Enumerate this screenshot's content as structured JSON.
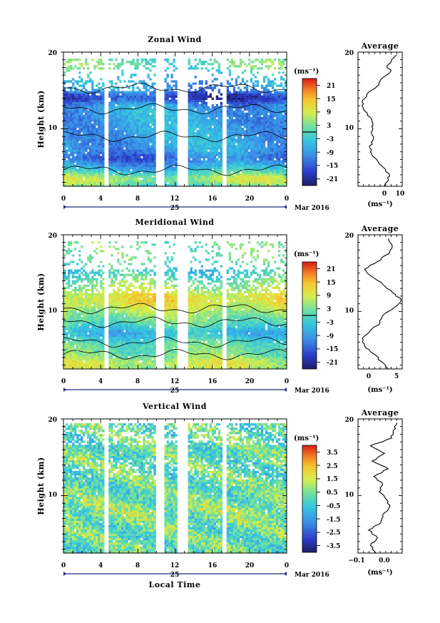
{
  "chart_data": [
    {
      "type": "heatmap",
      "title": "Zonal Wind",
      "ylabel": "Height (km)",
      "xlim": [
        0,
        24
      ],
      "ylim": [
        2.5,
        20
      ],
      "xticks": [
        "0",
        "4",
        "8",
        "12",
        "16",
        "20",
        "0"
      ],
      "yticks": [
        "10",
        "20"
      ],
      "date_marker": "25",
      "date_label": "Mar 2016",
      "colorbar": {
        "unit": "(ms⁻¹)",
        "ticks": [
          "21",
          "15",
          "9",
          "3",
          "-3",
          "-9",
          "-15",
          "-21"
        ],
        "range": [
          -24,
          24
        ]
      },
      "profile": {
        "title": "Average",
        "xlabel": "(ms⁻¹)",
        "xticks": [
          "0",
          "10"
        ],
        "xlim": [
          -8,
          12
        ],
        "points": [
          [
            4,
            2.5
          ],
          [
            5.8,
            3.3
          ],
          [
            6.2,
            4
          ],
          [
            4.2,
            4.8
          ],
          [
            1.5,
            5.5
          ],
          [
            -1.6,
            6.5
          ],
          [
            -2.6,
            7.5
          ],
          [
            -1.2,
            8.5
          ],
          [
            -2,
            9.5
          ],
          [
            -1.2,
            10.5
          ],
          [
            -2.5,
            11.5
          ],
          [
            -5.5,
            12.5
          ],
          [
            -6.2,
            13.5
          ],
          [
            -4,
            14.5
          ],
          [
            0.5,
            15.5
          ],
          [
            2.5,
            16.5
          ],
          [
            6.8,
            17.5
          ],
          [
            5.2,
            18.2
          ],
          [
            7.2,
            19
          ],
          [
            9.5,
            19.6
          ]
        ]
      },
      "style": {
        "base": -8,
        "mode": "zonal"
      }
    },
    {
      "type": "heatmap",
      "title": "Meridional Wind",
      "ylabel": "Height (km)",
      "xlim": [
        0,
        24
      ],
      "ylim": [
        2.5,
        20
      ],
      "xticks": [
        "0",
        "4",
        "8",
        "12",
        "16",
        "20",
        "0"
      ],
      "yticks": [
        "10",
        "20"
      ],
      "date_marker": "25",
      "date_label": "Mar 2016",
      "colorbar": {
        "unit": "(ms⁻¹)",
        "ticks": [
          "21",
          "15",
          "9",
          "3",
          "-3",
          "-9",
          "-15",
          "-21"
        ],
        "range": [
          -24,
          24
        ]
      },
      "profile": {
        "title": "Average",
        "xlabel": "(ms⁻¹)",
        "xticks": [
          "0",
          "5"
        ],
        "xlim": [
          -2,
          6
        ],
        "points": [
          [
            3.5,
            2.5
          ],
          [
            2.2,
            3.5
          ],
          [
            0.8,
            4.5
          ],
          [
            -0.8,
            5.5
          ],
          [
            -1.2,
            6.5
          ],
          [
            0.2,
            7.5
          ],
          [
            2,
            8.5
          ],
          [
            2.5,
            9.5
          ],
          [
            4.5,
            10.5
          ],
          [
            5.8,
            11.5
          ],
          [
            4.2,
            12.5
          ],
          [
            2.5,
            13.5
          ],
          [
            0.6,
            14.5
          ],
          [
            -0.8,
            15.5
          ],
          [
            1.5,
            16.5
          ],
          [
            3.5,
            17.5
          ],
          [
            4.2,
            18.5
          ],
          [
            3.5,
            19.5
          ]
        ]
      },
      "style": {
        "base": 2,
        "mode": "meridional"
      }
    },
    {
      "type": "heatmap",
      "title": "Vertical Wind",
      "ylabel": "Height (km)",
      "xlabel": "Local Time",
      "xlim": [
        0,
        24
      ],
      "ylim": [
        2.5,
        20
      ],
      "xticks": [
        "0",
        "4",
        "8",
        "12",
        "16",
        "20",
        "0"
      ],
      "yticks": [
        "10",
        "20"
      ],
      "date_marker": "25",
      "date_label": "Mar 2016",
      "colorbar": {
        "unit": "(ms⁻¹)",
        "ticks": [
          "3.5",
          "2.5",
          "1.5",
          "0.5",
          "-0.5",
          "-1.5",
          "-2.5",
          "-3.5"
        ],
        "range": [
          -4,
          4
        ]
      },
      "profile": {
        "title": "Average",
        "xlabel": "(ms⁻¹)",
        "xticks": [
          "−0.1",
          "0.0"
        ],
        "xlim": [
          -0.15,
          0.1
        ],
        "points": [
          [
            -0.05,
            2.5
          ],
          [
            -0.08,
            3.5
          ],
          [
            -0.04,
            4.5
          ],
          [
            -0.09,
            5.5
          ],
          [
            -0.02,
            6.5
          ],
          [
            -0.01,
            7.5
          ],
          [
            0.03,
            8.5
          ],
          [
            0.01,
            9.5
          ],
          [
            -0.03,
            10.5
          ],
          [
            -0.01,
            11.5
          ],
          [
            -0.06,
            12.5
          ],
          [
            0.02,
            13.5
          ],
          [
            -0.07,
            14.5
          ],
          [
            0.0,
            15.5
          ],
          [
            -0.08,
            16.5
          ],
          [
            0.04,
            17.5
          ],
          [
            0.05,
            18.5
          ],
          [
            0.07,
            19.5
          ]
        ]
      },
      "style": {
        "base": 0,
        "mode": "vertical"
      }
    }
  ]
}
